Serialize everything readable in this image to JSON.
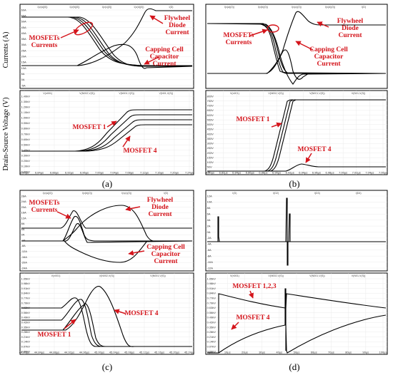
{
  "figure": {
    "ylabel_currents": "Currents (A)",
    "ylabel_voltage": "Drain-Source Voltage (V)",
    "accent_color": "#d4141b",
    "trace_color": "#000000"
  },
  "chart_data": [
    {
      "id": "a",
      "caption": "(a)",
      "type": "line",
      "top": {
        "legend": [
          "I(v(a)(0))",
          "I(v(b)(0))",
          "I(v(c)(0))",
          "I(v(d)(0))",
          "I(D)"
        ],
        "yticks": [
          "60A",
          "55A",
          "50A",
          "45A",
          "40A",
          "35A",
          "30A",
          "25A",
          "20A",
          "15A",
          "10A",
          "5A",
          "0A",
          "-5A"
        ],
        "annotations": [
          "MOSFETs Currents",
          "Flywheel Diode Current",
          "Capping Cell Capacitor Current"
        ]
      },
      "bottom": {
        "legend": [
          "V(n001)",
          "V(N002,V(S))",
          "V(N001,V(S))",
          "V(N01,V(S))"
        ],
        "yticks": [
          "1.40kV",
          "1.30kV",
          "1.20kV",
          "1.10kV",
          "1.00kV",
          "0.90kV",
          "0.80kV",
          "0.70kV",
          "0.60kV",
          "0.50kV",
          "0.40kV",
          "0.30kV",
          "0.20kV",
          "0.10kV",
          "0.00kV"
        ],
        "xticks": [
          "6.80µs",
          "6.84µs",
          "6.88µs",
          "6.92µs",
          "6.96µs",
          "7.00µs",
          "7.04µs",
          "7.08µs",
          "7.12µs",
          "7.16µs",
          "7.20µs",
          "7.24µs"
        ],
        "annotations": [
          "MOSFET 1",
          "MOSFET 4"
        ]
      }
    },
    {
      "id": "b",
      "caption": "(b)",
      "type": "line",
      "top": {
        "legend": [
          "I(v(a)(0))",
          "I(v(b)(0))",
          "I(v(c)(0))",
          "I(v(d)(0))",
          "I(D)"
        ],
        "annotations": [
          "MOSFETs Currents",
          "Flywheel Diode Current",
          "Capping Cell Capacitor Current"
        ]
      },
      "bottom": {
        "legend": [
          "V(n001)",
          "V(N002,V(S))",
          "V(N001,V(S))",
          "V(N01,V(S))"
        ],
        "yticks": [
          "800V",
          "750V",
          "700V",
          "650V",
          "600V",
          "550V",
          "500V",
          "450V",
          "400V",
          "350V",
          "300V",
          "250V",
          "200V",
          "150V",
          "100V",
          "50V",
          "0V"
        ],
        "xticks": [
          "6.80µs",
          "6.82µs",
          "6.84µs",
          "6.86µs",
          "6.88µs",
          "6.90µs",
          "6.92µs",
          "6.94µs",
          "6.96µs",
          "6.98µs",
          "7.00µs",
          "7.02µs",
          "7.04µs",
          "7.06µs"
        ],
        "annotations": [
          "MOSFET 1",
          "MOSFET 4"
        ]
      }
    },
    {
      "id": "c",
      "caption": "(c)",
      "type": "line",
      "top": {
        "legend": [
          "I(v(a)(0))",
          "I(v(b)(0))",
          "I(v(c)(0))",
          "I(D)"
        ],
        "yticks": [
          "28A",
          "24A",
          "20A",
          "16A",
          "12A",
          "8A",
          "4A",
          "0A",
          "-4A",
          "-8A",
          "-12A",
          "-16A",
          "-20A",
          "-24A"
        ],
        "annotations": [
          "MOSFETs Currents",
          "Flywheel Diode Current",
          "Capping Cell Capacitor Current"
        ]
      },
      "bottom": {
        "legend": [
          "V(n001)",
          "V(N002,V(S))",
          "V(N001,V(S))"
        ],
        "yticks": [
          "1.05kV",
          "0.98kV",
          "0.91kV",
          "0.84kV",
          "0.77kV",
          "0.70kV",
          "0.63kV",
          "0.56kV",
          "0.49kV",
          "0.42kV",
          "0.35kV",
          "0.28kV",
          "0.21kV",
          "0.14kV",
          "0.07kV",
          "0.00kV"
        ],
        "xticks": [
          "44.80µs",
          "44.84µs",
          "44.88µs",
          "44.92µs",
          "44.96µs",
          "45.00µs",
          "45.04µs",
          "45.08µs",
          "45.12µs",
          "45.16µs",
          "45.20µs",
          "45.24µs"
        ],
        "annotations": [
          "MOSFET 1",
          "MOSFET 4"
        ]
      }
    },
    {
      "id": "d",
      "caption": "(d)",
      "type": "line",
      "top": {
        "legend": [
          "I(D)",
          "I(D2)",
          "I(D3)",
          "I(D4)"
        ],
        "yticks": [
          "12A",
          "10A",
          "8A",
          "6A",
          "4A",
          "2A",
          "0A",
          "-2A",
          "-4A",
          "-6A",
          "-8A",
          "-10A",
          "-12A"
        ]
      },
      "bottom": {
        "legend": [
          "V(n001)",
          "V(N002,V(S))",
          "V(N001,V(S))",
          "V(N01,V(S))"
        ],
        "yticks": [
          "1.05kV",
          "0.98kV",
          "0.91kV",
          "0.84kV",
          "0.77kV",
          "0.70kV",
          "0.63kV",
          "0.56kV",
          "0.49kV",
          "0.42kV",
          "0.35kV",
          "0.28kV",
          "0.21kV",
          "0.14kV",
          "0.07kV",
          "0.00kV"
        ],
        "xticks": [
          "0µs",
          "10µs",
          "20µs",
          "30µs",
          "40µs",
          "50µs",
          "60µs",
          "70µs",
          "80µs",
          "90µs",
          "100µs"
        ],
        "annotations": [
          "MOSFET 1,2,3",
          "MOSFET 4"
        ]
      }
    }
  ]
}
